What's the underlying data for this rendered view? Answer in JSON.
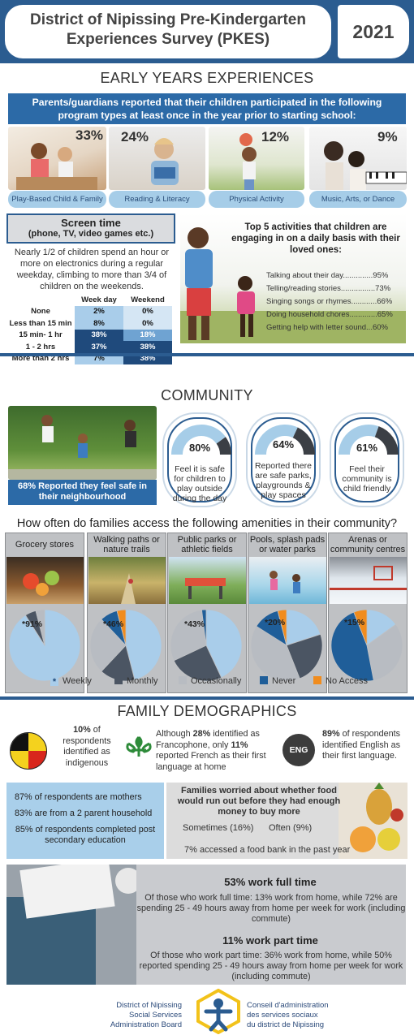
{
  "header": {
    "title_line1": "District of Nipissing Pre-Kindergarten",
    "title_line2": "Experiences Survey (PKES)",
    "year": "2021"
  },
  "early_years": {
    "section_title": "EARLY YEARS EXPERIENCES",
    "banner_line1": "Parents/guardians reported that their children participated in the following",
    "banner_line2": "program types at least once in the year prior to starting school:",
    "programs": [
      {
        "pct": "33%",
        "label": "Play-Based Child & Family"
      },
      {
        "pct": "24%",
        "label": "Reading & Literacy"
      },
      {
        "pct": "12%",
        "label": "Physical Activity"
      },
      {
        "pct": "9%",
        "label": "Music, Arts, or Dance"
      }
    ]
  },
  "screen_time": {
    "title": "Screen time",
    "subtitle": "(phone, TV, video games etc.)",
    "text": "Nearly 1/2 of children spend an hour or more on electronics during a regular weekday, climbing to more than 3/4 of children on the weekends.",
    "headers": [
      "Week day",
      "Weekend"
    ],
    "rows": [
      {
        "label": "None",
        "weekday": "2%",
        "weekend": "0%"
      },
      {
        "label": "Less than 15 min",
        "weekday": "8%",
        "weekend": "0%"
      },
      {
        "label": "15 min- 1 hr",
        "weekday": "38%",
        "weekend": "18%"
      },
      {
        "label": "1 - 2 hrs",
        "weekday": "37%",
        "weekend": "38%"
      },
      {
        "label": "More than 2 hrs",
        "weekday": "7%",
        "weekend": "38%"
      }
    ]
  },
  "top5": {
    "title": "Top 5 activities that children are engaging in on a daily basis with their loved ones:",
    "items": [
      "Talking about their day..............95%",
      "Telling/reading stories................73%",
      "Singing songs or rhymes............66%",
      "Doing household chores.............65%",
      "Getting help with letter sound...60%"
    ]
  },
  "community": {
    "section_title": "COMMUNITY",
    "safe_caption": "68% Reported they feel safe in their neighbourhood",
    "dials": [
      {
        "pct": "80%",
        "value": 80,
        "text": "Feel it is safe for children to play outside during the day"
      },
      {
        "pct": "64%",
        "value": 64,
        "text": "Reported there are safe parks, playgrounds & play spaces"
      },
      {
        "pct": "61%",
        "value": 61,
        "text": "Feel their community is child friendly"
      }
    ],
    "amenities_title": "How often do families access the following amenities in their community?",
    "amenities": [
      {
        "label": "Grocery stores",
        "pct": "*91%"
      },
      {
        "label": "Walking paths or nature trails",
        "pct": "*46%"
      },
      {
        "label": "Public parks or athletic fields",
        "pct": "*43%"
      },
      {
        "label": "Pools, splash pads or water parks",
        "pct": "*20%"
      },
      {
        "label": "Arenas or community centres",
        "pct": "*15%"
      }
    ],
    "legend": [
      {
        "label": "Weekly",
        "color": "#a9cdea",
        "marker": "*"
      },
      {
        "label": "Monthly",
        "color": "#4b5563"
      },
      {
        "label": "Occasionally",
        "color": "#b8bcc2"
      },
      {
        "label": "Never",
        "color": "#1f5e99"
      },
      {
        "label": "No Access",
        "color": "#f08c1e"
      }
    ]
  },
  "chart_data": [
    {
      "type": "pie",
      "title": "Grocery stores",
      "categories": [
        "Weekly",
        "Monthly",
        "Occasionally",
        "Never",
        "No Access"
      ],
      "values": [
        91,
        5,
        4,
        0,
        0
      ]
    },
    {
      "type": "pie",
      "title": "Walking paths or nature trails",
      "categories": [
        "Weekly",
        "Monthly",
        "Occasionally",
        "Never",
        "No Access"
      ],
      "values": [
        46,
        16,
        26,
        8,
        4
      ]
    },
    {
      "type": "pie",
      "title": "Public parks or athletic fields",
      "categories": [
        "Weekly",
        "Monthly",
        "Occasionally",
        "Never",
        "No Access"
      ],
      "values": [
        43,
        25,
        30,
        2,
        0
      ]
    },
    {
      "type": "pie",
      "title": "Pools, splash pads or water parks",
      "categories": [
        "Weekly",
        "Monthly",
        "Occasionally",
        "Never",
        "No Access"
      ],
      "values": [
        20,
        24,
        40,
        12,
        4
      ]
    },
    {
      "type": "pie",
      "title": "Arenas or community centres",
      "categories": [
        "Weekly",
        "Monthly",
        "Occasionally",
        "Never",
        "No Access"
      ],
      "values": [
        15,
        0,
        32,
        47,
        6
      ]
    }
  ],
  "demographics": {
    "section_title": "FAMILY DEMOGRAPHICS",
    "indigenous": {
      "pct": "10%",
      "text": "of respondents identified as indigenous"
    },
    "francophone": {
      "pre": "Although",
      "pct1": "28%",
      "mid": "identified as Francophone, only",
      "pct2": "11%",
      "post": "reported French as their first language at home"
    },
    "english": {
      "icon": "ENG",
      "pct": "89%",
      "text": "of respondents identified English as their first language."
    },
    "facts": [
      {
        "pct": "87%",
        "text": "of respondents are mothers"
      },
      {
        "pct": "83%",
        "text": "are from a 2 parent household"
      },
      {
        "pct": "85%",
        "text": "of respondents completed post secondary education"
      }
    ],
    "food": {
      "title": "Families worried about whether food would run out before they had enough money to buy more",
      "sometimes": "Sometimes (16%)",
      "often": "Often (9%)",
      "bank": "7% accessed a food bank in the past year"
    },
    "work": {
      "full_title": "53% work full time",
      "full_text": "Of those who work full time: 13% work from home, while 72% are spending 25 - 49 hours away from home per week for work (including commute)",
      "part_title": "11% work part time",
      "part_text": "Of those who work part time: 36% work from home, while 50% reported spending 25 - 49 hours away from home per week for work (including commute)"
    }
  },
  "footer": {
    "left": [
      "District of Nipissing",
      "Social Services",
      "Administration Board"
    ],
    "right": [
      "Conseil d'administration",
      "des services sociaux",
      "du district de Nipissing"
    ]
  }
}
